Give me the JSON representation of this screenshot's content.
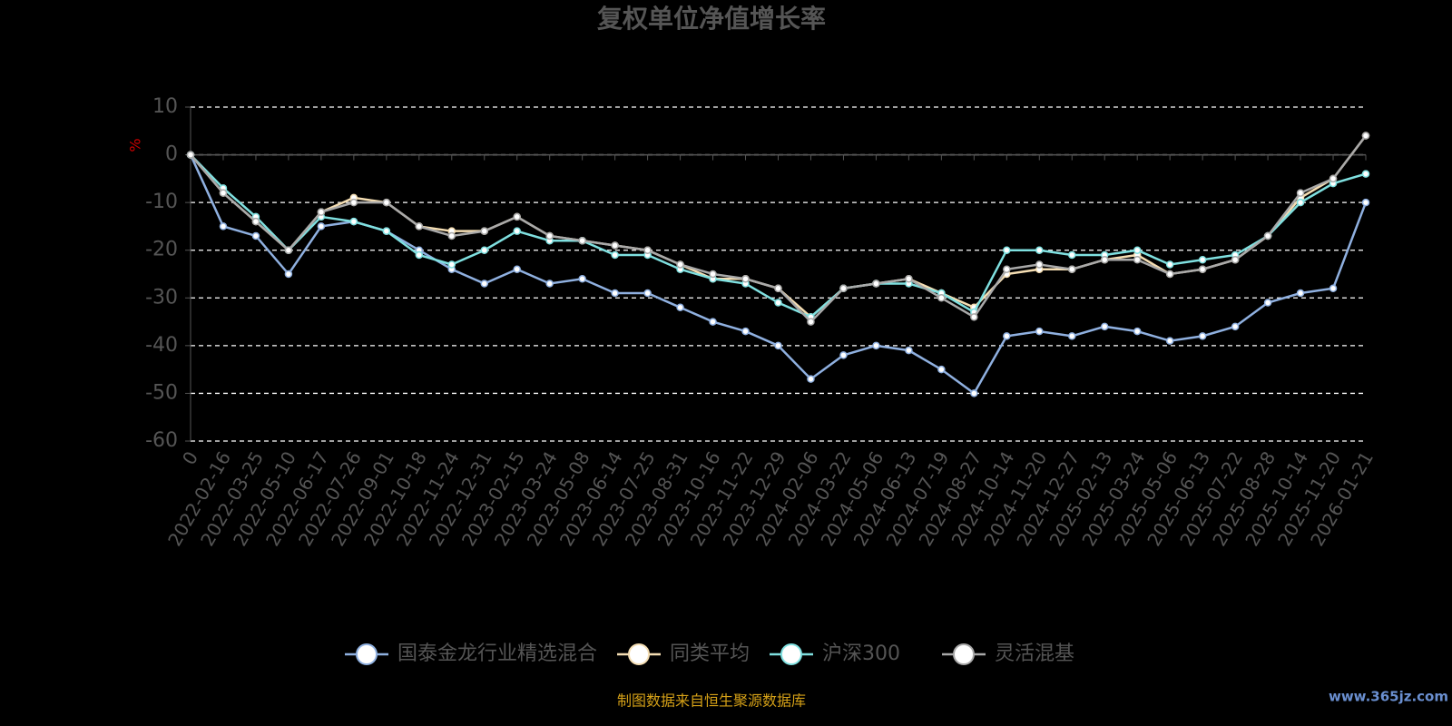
{
  "chart_data": {
    "type": "line",
    "title": "复权单位净值增长率",
    "y_label": "%",
    "source": "制图数据来自恒生聚源数据库",
    "watermark": "www.365jz.com",
    "categories": [
      "0",
      "2022-02-16",
      "2022-03-25",
      "2022-05-10",
      "2022-06-17",
      "2022-07-26",
      "2022-09-01",
      "2022-10-18",
      "2022-11-24",
      "2022-12-31",
      "2023-02-15",
      "2023-03-24",
      "2023-05-08",
      "2023-06-14",
      "2023-07-25",
      "2023-08-31",
      "2023-10-16",
      "2023-11-22",
      "2023-12-29",
      "2024-02-06",
      "2024-03-22",
      "2024-05-06",
      "2024-06-13",
      "2024-07-19",
      "2024-08-27",
      "2024-10-14",
      "2024-11-20",
      "2024-12-27",
      "2025-02-13",
      "2025-03-24",
      "2025-05-06",
      "2025-06-13",
      "2025-07-22",
      "2025-08-28",
      "2025-10-14",
      "2025-11-20",
      "2026-01-21"
    ],
    "series": [
      {
        "name": "国泰金龙行业精选混合",
        "color": "#8fb0e0",
        "values": [
          0,
          -15,
          -17,
          -25,
          -15,
          -14,
          -16,
          -20,
          -24,
          -27,
          -24,
          -27,
          -26,
          -29,
          -29,
          -32,
          -35,
          -37,
          -40,
          -47,
          -42,
          -40,
          -41,
          -45,
          -50,
          -38,
          -37,
          -38,
          -36,
          -37,
          -39,
          -38,
          -36,
          -31,
          -29,
          -28,
          -10
        ]
      },
      {
        "name": "同类平均",
        "color": "#f5deb3",
        "values": [
          0,
          -8,
          -14,
          -20,
          -12,
          -9,
          -10,
          -15,
          -16,
          -16,
          -13,
          -17,
          -18,
          -19,
          -20,
          -23,
          -26,
          -26,
          -28,
          -34,
          -28,
          -27,
          -26,
          -29,
          -32,
          -25,
          -24,
          -24,
          -22,
          -21,
          -25,
          -24,
          -22,
          -17,
          -9,
          -5,
          4
        ]
      },
      {
        "name": "沪深300",
        "color": "#7fe0e0",
        "values": [
          0,
          -7,
          -13,
          -20,
          -13,
          -14,
          -16,
          -21,
          -23,
          -20,
          -16,
          -18,
          -18,
          -21,
          -21,
          -24,
          -26,
          -27,
          -31,
          -34,
          -28,
          -27,
          -27,
          -29,
          -33,
          -20,
          -20,
          -21,
          -21,
          -20,
          -23,
          -22,
          -21,
          -17,
          -10,
          -6,
          -4
        ]
      },
      {
        "name": "灵活混基",
        "color": "#a9a9a9",
        "values": [
          0,
          -8,
          -14,
          -20,
          -12,
          -10,
          -10,
          -15,
          -17,
          -16,
          -13,
          -17,
          -18,
          -19,
          -20,
          -23,
          -25,
          -26,
          -28,
          -35,
          -28,
          -27,
          -26,
          -30,
          -34,
          -24,
          -23,
          -24,
          -22,
          -22,
          -25,
          -24,
          -22,
          -17,
          -8,
          -5,
          4
        ]
      }
    ],
    "ylim": [
      -60,
      10
    ],
    "yticks": [
      10,
      0,
      -10,
      -20,
      -30,
      -40,
      -50,
      -60
    ],
    "grid": true
  }
}
